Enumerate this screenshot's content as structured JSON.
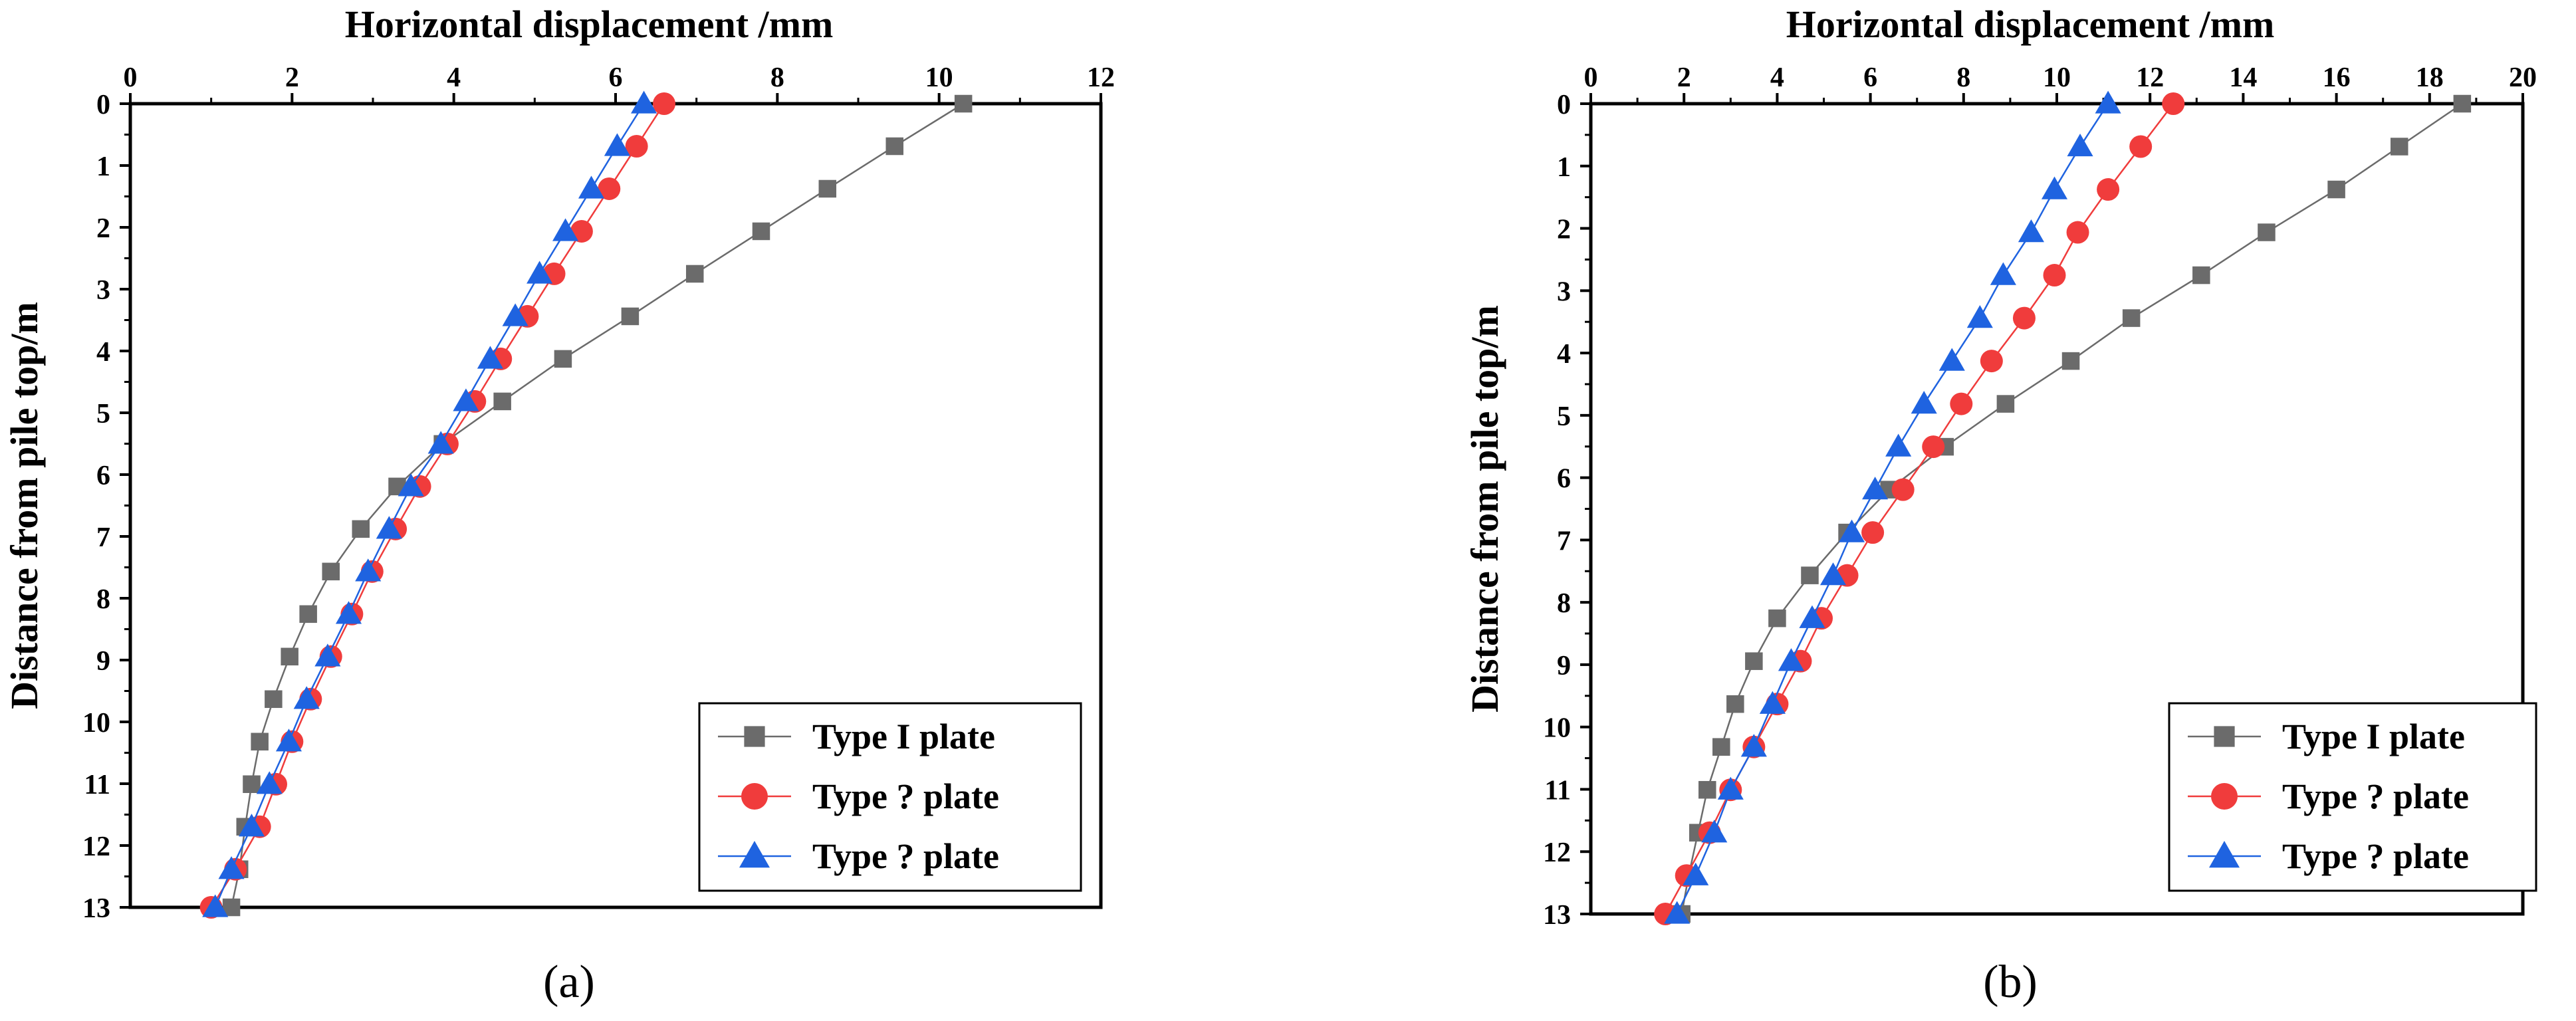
{
  "chart_data": [
    {
      "type": "line",
      "panel_label": "(a)",
      "title": "",
      "xlabel": "Horizontal displacement /mm",
      "ylabel": "Distance from pile top/m",
      "xlim": [
        0,
        12
      ],
      "ylim": [
        0,
        13
      ],
      "x_axis_position": "top",
      "y_axis_inverted": true,
      "xticks": [
        0,
        2,
        4,
        6,
        8,
        10,
        12
      ],
      "yticks": [
        0,
        1,
        2,
        3,
        4,
        5,
        6,
        7,
        8,
        9,
        10,
        11,
        12,
        13
      ],
      "legend_position": "bottom-right",
      "y": [
        0,
        0.688,
        1.376,
        2.064,
        2.752,
        3.44,
        4.128,
        4.816,
        5.504,
        6.192,
        6.88,
        7.568,
        8.256,
        8.944,
        9.632,
        10.32,
        11.008,
        11.696,
        12.384,
        13.0
      ],
      "series": [
        {
          "name": "Type I plate",
          "marker": "square",
          "color": "#6b6b6b",
          "x": [
            10.3,
            9.45,
            8.62,
            7.8,
            6.98,
            6.18,
            5.35,
            4.6,
            3.86,
            3.3,
            2.85,
            2.48,
            2.2,
            1.97,
            1.77,
            1.6,
            1.5,
            1.42,
            1.35,
            1.25
          ]
        },
        {
          "name": "Type ?  plate",
          "marker": "circle",
          "color": "#f03c3c",
          "x": [
            6.6,
            6.26,
            5.92,
            5.58,
            5.24,
            4.91,
            4.58,
            4.26,
            3.92,
            3.58,
            3.28,
            2.99,
            2.74,
            2.48,
            2.23,
            2.0,
            1.8,
            1.6,
            1.3,
            1.0
          ]
        },
        {
          "name": "Type ?    plate",
          "marker": "triangle",
          "color": "#1f63e0",
          "x": [
            6.35,
            6.02,
            5.7,
            5.38,
            5.06,
            4.76,
            4.45,
            4.15,
            3.84,
            3.47,
            3.2,
            2.94,
            2.7,
            2.44,
            2.18,
            1.96,
            1.72,
            1.5,
            1.25,
            1.05
          ]
        }
      ]
    },
    {
      "type": "line",
      "panel_label": "(b)",
      "title": "",
      "xlabel": "Horizontal displacement /mm",
      "ylabel": "Distance from pile top/m",
      "xlim": [
        0,
        20
      ],
      "ylim": [
        0,
        13
      ],
      "x_axis_position": "top",
      "y_axis_inverted": true,
      "xticks": [
        0,
        2,
        4,
        6,
        8,
        10,
        12,
        14,
        16,
        18,
        20
      ],
      "yticks": [
        0,
        1,
        2,
        3,
        4,
        5,
        6,
        7,
        8,
        9,
        10,
        11,
        12,
        13
      ],
      "legend_position": "bottom-right",
      "y": [
        0,
        0.688,
        1.376,
        2.064,
        2.752,
        3.44,
        4.128,
        4.816,
        5.504,
        6.192,
        6.88,
        7.568,
        8.256,
        8.944,
        9.632,
        10.32,
        11.008,
        11.696,
        12.384,
        13.0
      ],
      "series": [
        {
          "name": "Type I plate",
          "marker": "square",
          "color": "#6b6b6b",
          "x": [
            18.7,
            17.35,
            16.0,
            14.5,
            13.1,
            11.6,
            10.3,
            8.9,
            7.6,
            6.4,
            5.5,
            4.7,
            4.0,
            3.5,
            3.1,
            2.8,
            2.5,
            2.3,
            2.1,
            1.95
          ]
        },
        {
          "name": "Type ?  plate",
          "marker": "circle",
          "color": "#f03c3c",
          "x": [
            12.5,
            11.8,
            11.1,
            10.45,
            9.95,
            9.3,
            8.6,
            7.95,
            7.35,
            6.7,
            6.05,
            5.5,
            4.95,
            4.5,
            4.0,
            3.5,
            3.0,
            2.55,
            2.05,
            1.6
          ]
        },
        {
          "name": "Type ?    plate",
          "marker": "triangle",
          "color": "#1f63e0",
          "x": [
            11.1,
            10.5,
            9.95,
            9.45,
            8.85,
            8.35,
            7.75,
            7.15,
            6.6,
            6.1,
            5.6,
            5.2,
            4.75,
            4.3,
            3.9,
            3.5,
            3.0,
            2.65,
            2.25,
            1.85
          ]
        }
      ]
    }
  ]
}
